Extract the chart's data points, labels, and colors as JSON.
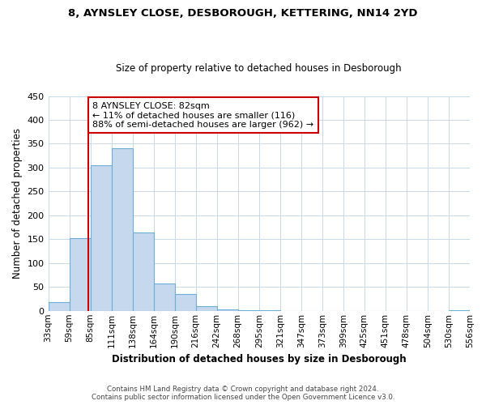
{
  "title": "8, AYNSLEY CLOSE, DESBOROUGH, KETTERING, NN14 2YD",
  "subtitle": "Size of property relative to detached houses in Desborough",
  "xlabel": "Distribution of detached houses by size in Desborough",
  "ylabel": "Number of detached properties",
  "bar_values": [
    18,
    153,
    305,
    340,
    165,
    57,
    35,
    10,
    3,
    1,
    1,
    0,
    0,
    0,
    0,
    0,
    0,
    0,
    0,
    2
  ],
  "bar_labels": [
    "33sqm",
    "59sqm",
    "85sqm",
    "111sqm",
    "138sqm",
    "164sqm",
    "190sqm",
    "216sqm",
    "242sqm",
    "268sqm",
    "295sqm",
    "321sqm",
    "347sqm",
    "373sqm",
    "399sqm",
    "425sqm",
    "451sqm",
    "478sqm",
    "504sqm",
    "530sqm",
    "556sqm"
  ],
  "bar_color": "#c5d8ed",
  "bar_edge_color": "#6baed6",
  "property_line_color": "#cc0000",
  "annotation_text": "8 AYNSLEY CLOSE: 82sqm\n← 11% of detached houses are smaller (116)\n88% of semi-detached houses are larger (962) →",
  "annotation_box_color": "#ffffff",
  "annotation_box_edge_color": "#cc0000",
  "ylim": [
    0,
    450
  ],
  "yticks": [
    0,
    50,
    100,
    150,
    200,
    250,
    300,
    350,
    400,
    450
  ],
  "footer_line1": "Contains HM Land Registry data © Crown copyright and database right 2024.",
  "footer_line2": "Contains public sector information licensed under the Open Government Licence v3.0.",
  "bg_color": "#ffffff",
  "grid_color": "#c8d8e8"
}
